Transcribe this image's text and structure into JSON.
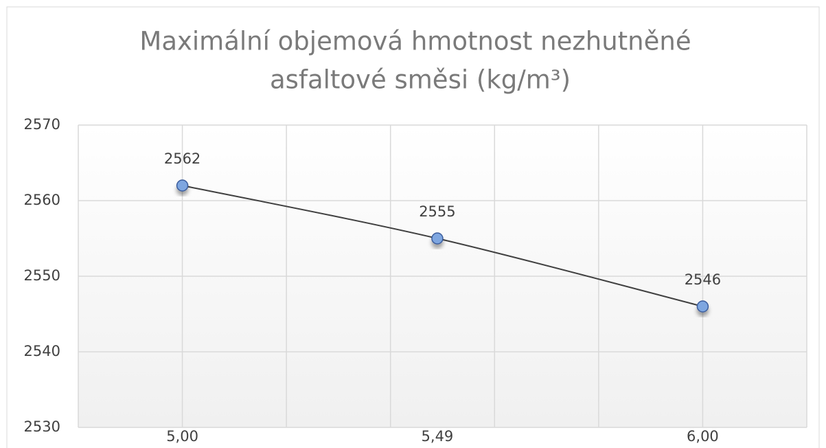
{
  "chart_data": {
    "type": "scatter",
    "title": [
      "Maximální objemová hmotnost nezhutněné",
      "asfaltové směsi (kg/m³)"
    ],
    "x": [
      5.0,
      5.49,
      6.0
    ],
    "series": [
      {
        "name": "Maximální objemová hmotnost",
        "color": "#7ea6e0",
        "line_color": "#404040",
        "values": [
          2562,
          2555,
          2546
        ]
      }
    ],
    "xlim": [
      4.8,
      6.2
    ],
    "xticks": [
      {
        "value": 5.0,
        "label": "5,00"
      },
      {
        "value": 5.49,
        "label": "5,49"
      },
      {
        "value": 6.0,
        "label": "6,00"
      }
    ],
    "xgrid": [
      4.8,
      5.0,
      5.2,
      5.4,
      5.6,
      5.8,
      6.0,
      6.2
    ],
    "ylim": [
      2530,
      2570
    ],
    "yticks": [
      2530,
      2540,
      2550,
      2560,
      2570
    ],
    "grid": true,
    "smooth": true,
    "data_labels": true
  }
}
